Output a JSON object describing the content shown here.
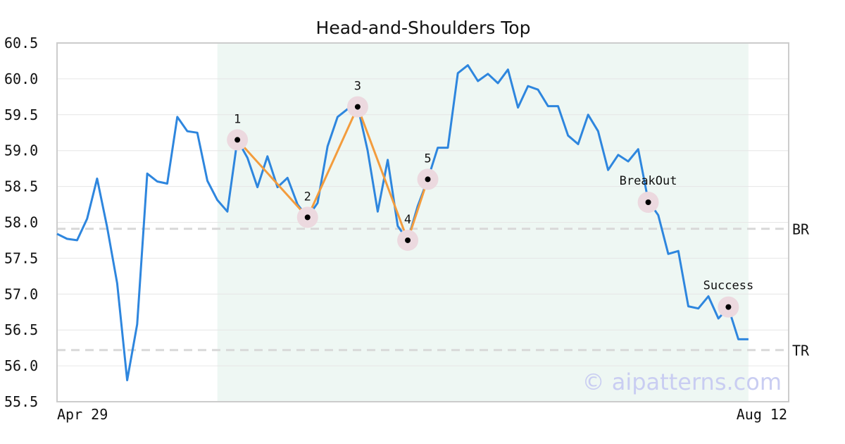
{
  "chart_data": {
    "type": "line",
    "title": "Head-and-Shoulders Top",
    "xlabel": "",
    "ylabel": "",
    "ylim": [
      55.5,
      60.5
    ],
    "yticks": [
      "55.5",
      "56.0",
      "56.5",
      "57.0",
      "57.5",
      "58.0",
      "58.5",
      "59.0",
      "59.5",
      "60.0",
      "60.5"
    ],
    "x_tick_labels": {
      "start": "Apr 29",
      "end": "Aug 12"
    },
    "grid": "horizontal",
    "watermark": "© aipatterns.com",
    "colors": {
      "price_line": "#2e86de",
      "pattern_line": "#f39c3d",
      "pattern_zone": "#eef7f3",
      "reference_line": "#d9d9d9",
      "marker_halo": "#ecd9df",
      "axis": "#cccccc"
    },
    "pattern_zone": {
      "start_index": 16,
      "end_index": 69
    },
    "series": [
      {
        "values": [
          57.84,
          57.77,
          57.75,
          58.05,
          58.61,
          57.93,
          57.15,
          55.8,
          56.58,
          58.68,
          58.57,
          58.54,
          59.47,
          59.27,
          59.25,
          58.58,
          58.31,
          58.15,
          59.15,
          58.9,
          58.49,
          58.92,
          58.49,
          58.62,
          58.25,
          58.07,
          58.27,
          59.06,
          59.47,
          59.58,
          59.62,
          59.0,
          58.15,
          58.87,
          57.95,
          57.75,
          58.23,
          58.6,
          59.04,
          59.04,
          60.08,
          60.19,
          59.97,
          60.07,
          59.94,
          60.13,
          59.6,
          59.9,
          59.85,
          59.62,
          59.62,
          59.21,
          59.09,
          59.5,
          59.27,
          58.73,
          58.94,
          58.85,
          59.02,
          58.3,
          58.1,
          57.56,
          57.6,
          56.83,
          56.8,
          56.97,
          56.66,
          56.81,
          56.37,
          56.37
        ]
      }
    ],
    "pattern_points": [
      {
        "label": "1",
        "index": 18,
        "value": 59.15
      },
      {
        "label": "2",
        "index": 25,
        "value": 58.07
      },
      {
        "label": "3",
        "index": 30,
        "value": 59.61
      },
      {
        "label": "4",
        "index": 35,
        "value": 57.75
      },
      {
        "label": "5",
        "index": 37,
        "value": 58.6
      }
    ],
    "events": [
      {
        "label": "BreakOut",
        "index": 59,
        "value": 58.28
      },
      {
        "label": "Success",
        "index": 67,
        "value": 56.82
      }
    ],
    "reference_lines": [
      {
        "label": "BR",
        "value": 57.91
      },
      {
        "label": "TR",
        "value": 56.22
      }
    ]
  }
}
